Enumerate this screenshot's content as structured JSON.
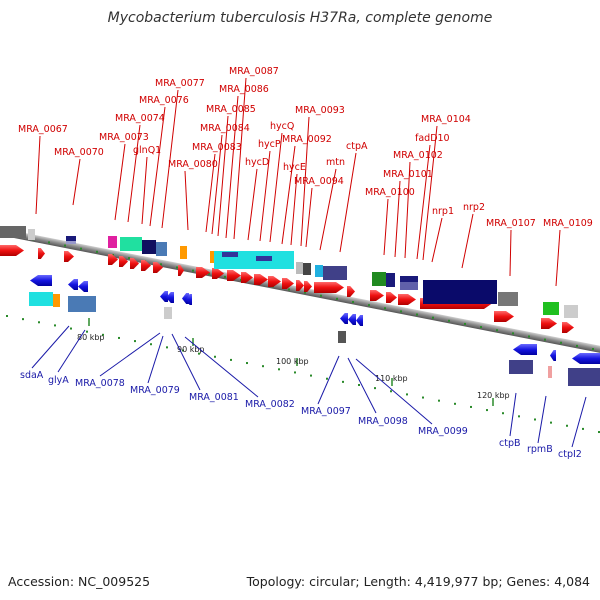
{
  "title": "Mycobacterium tuberculosis H37Ra, complete genome",
  "footer": {
    "accession": "Accession: NC_009525",
    "summary": "Topology: circular; Length: 4,419,977 bp; Genes: 4,084"
  },
  "scale_ticks": [
    "80 kbp",
    "90 kbp",
    "100 kbp",
    "110 kbp",
    "120 kbp"
  ],
  "forward_labels": [
    "MRA_0067",
    "MRA_0070",
    "MRA_0073",
    "MRA_0074",
    "glnQ1",
    "MRA_0076",
    "MRA_0077",
    "MRA_0080",
    "MRA_0083",
    "MRA_0084",
    "MRA_0085",
    "MRA_0086",
    "MRA_0087",
    "hycD",
    "hycP",
    "hycQ",
    "MRA_0092",
    "hycE",
    "MRA_0093",
    "MRA_0094",
    "mtn",
    "ctpA",
    "MRA_0100",
    "MRA_0101",
    "MRA_0102",
    "fadD10",
    "MRA_0104",
    "nrp1",
    "nrp2",
    "MRA_0107",
    "MRA_0109"
  ],
  "reverse_labels": [
    "sdaA",
    "glyA",
    "MRA_0078",
    "MRA_0079",
    "MRA_0081",
    "MRA_0082",
    "MRA_0097",
    "MRA_0098",
    "MRA_0099",
    "ctpB",
    "rpmB",
    "ctpI2"
  ],
  "colors": {
    "forward_gene": "#ee1111",
    "reverse_gene": "#1111dd",
    "forward_label": "#d00000",
    "reverse_label": "#1a1aa8",
    "backbone": "#8a8a8a"
  }
}
